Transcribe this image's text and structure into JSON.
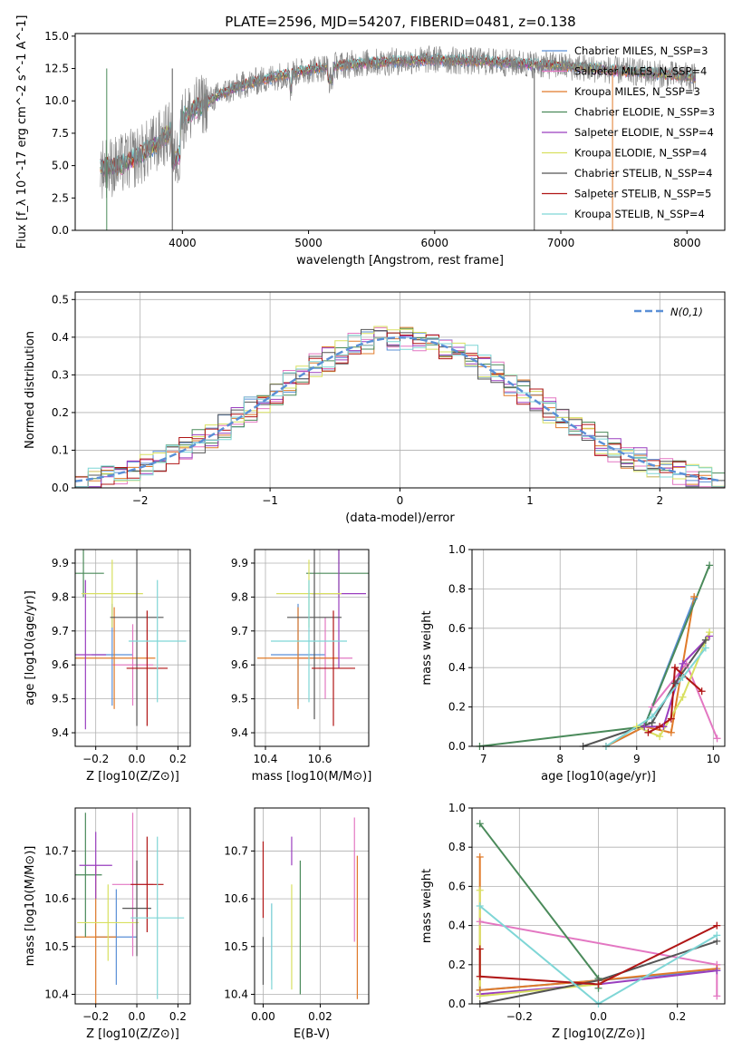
{
  "figure": {
    "title": "PLATE=2596, MJD=54207, FIBERID=0481, z=0.138"
  },
  "chart_data": [
    {
      "id": "spectrum",
      "type": "line",
      "title": "PLATE=2596, MJD=54207, FIBERID=0481, z=0.138",
      "xlabel": "wavelength [Angstrom, rest frame]",
      "ylabel": "Flux [f_λ 10^-17 erg cm^-2 s^-1 A^-1]",
      "xlim": [
        3150,
        8300
      ],
      "ylim": [
        0,
        15.2
      ],
      "xticks": [
        4000,
        5000,
        6000,
        7000,
        8000
      ],
      "yticks": [
        0.0,
        2.5,
        5.0,
        7.5,
        10.0,
        12.5,
        15.0
      ],
      "grid": false,
      "legend_position": "top-right",
      "series": [
        {
          "name": "Chabrier MILES, N_SSP=3",
          "color": "#5a8fd6"
        },
        {
          "name": "Salpeter MILES, N_SSP=4",
          "color": "#e377c2"
        },
        {
          "name": "Kroupa MILES, N_SSP=3",
          "color": "#e07b2a"
        },
        {
          "name": "Chabrier ELODIE, N_SSP=3",
          "color": "#4a8a5a"
        },
        {
          "name": "Salpeter ELODIE, N_SSP=4",
          "color": "#9a3fbf"
        },
        {
          "name": "Kroupa ELODIE, N_SSP=4",
          "color": "#d8e060"
        },
        {
          "name": "Chabrier STELIB, N_SSP=4",
          "color": "#555555"
        },
        {
          "name": "Salpeter STELIB, N_SSP=5",
          "color": "#b01515"
        },
        {
          "name": "Kroupa STELIB, N_SSP=4",
          "color": "#7fd6d6"
        }
      ],
      "data_color": "#808080",
      "continuum_x": [
        3350,
        3500,
        3700,
        3900,
        4000,
        4100,
        4300,
        4500,
        4800,
        5000,
        5200,
        5400,
        5600,
        5800,
        6000,
        6200,
        6500,
        7000,
        7500,
        8000,
        8070
      ],
      "continuum_y": [
        4.8,
        5.0,
        6.0,
        7.6,
        8.6,
        9.4,
        10.5,
        11.3,
        12.0,
        12.4,
        12.7,
        12.9,
        13.0,
        13.1,
        13.2,
        13.1,
        13.0,
        12.7,
        12.3,
        11.9,
        11.8
      ]
    },
    {
      "id": "residuals",
      "type": "bar",
      "xlabel": "(data-model)/error",
      "ylabel": "Normed distribution",
      "xlim": [
        -2.5,
        2.5
      ],
      "ylim": [
        0,
        0.52
      ],
      "xticks": [
        -2,
        -1,
        0,
        1,
        2
      ],
      "yticks": [
        0.0,
        0.1,
        0.2,
        0.3,
        0.4,
        0.5
      ],
      "grid": true,
      "legend_position": "top-right",
      "reference_curve": {
        "name": "N(0,1)",
        "mean": 0,
        "sigma": 1,
        "color": "#5a8fd6"
      }
    },
    {
      "id": "age-vs-Z",
      "type": "scatter",
      "xlabel": "Z [log10(Z/Z⊙)]",
      "ylabel": "age [log10(age/yr)]",
      "xlim": [
        -0.3,
        0.26
      ],
      "ylim": [
        9.36,
        9.94
      ],
      "xticks": [
        -0.2,
        0.0,
        0.2
      ],
      "yticks": [
        9.4,
        9.5,
        9.6,
        9.7,
        9.8,
        9.9
      ],
      "grid": true,
      "points": [
        {
          "color": "#5a8fd6",
          "x": -0.12,
          "xerr": 0.1,
          "y": 9.63,
          "yerr": 0.15
        },
        {
          "color": "#e377c2",
          "x": -0.02,
          "xerr": 0.1,
          "y": 9.6,
          "yerr": 0.12
        },
        {
          "color": "#e07b2a",
          "x": -0.11,
          "xerr": 0.2,
          "y": 9.62,
          "yerr": 0.15
        },
        {
          "color": "#4a8a5a",
          "x": -0.26,
          "xerr": 0.1,
          "y": 9.87,
          "yerr": 0.07
        },
        {
          "color": "#9a3fbf",
          "x": -0.25,
          "xerr": 0.1,
          "y": 9.63,
          "yerr": 0.22
        },
        {
          "color": "#d8e060",
          "x": -0.12,
          "xerr": 0.15,
          "y": 9.81,
          "yerr": 0.1
        },
        {
          "color": "#555555",
          "x": 0.0,
          "xerr": 0.13,
          "y": 9.74,
          "yerr": 0.32
        },
        {
          "color": "#b01515",
          "x": 0.05,
          "xerr": 0.1,
          "y": 9.59,
          "yerr": 0.17
        },
        {
          "color": "#7fd6d6",
          "x": 0.1,
          "xerr": 0.14,
          "y": 9.67,
          "yerr": 0.18
        }
      ]
    },
    {
      "id": "age-vs-mass",
      "type": "scatter",
      "xlabel": "mass [log10(M/M⊙)]",
      "ylabel": "",
      "xlim": [
        10.36,
        10.78
      ],
      "ylim": [
        9.36,
        9.94
      ],
      "xticks": [
        10.4,
        10.6
      ],
      "yticks": [
        9.4,
        9.5,
        9.6,
        9.7,
        9.8,
        9.9
      ],
      "grid": true,
      "points": [
        {
          "color": "#5a8fd6",
          "x": 10.52,
          "xerr": 0.1,
          "y": 9.63,
          "yerr": 0.15
        },
        {
          "color": "#e377c2",
          "x": 10.62,
          "xerr": 0.1,
          "y": 9.62,
          "yerr": 0.12
        },
        {
          "color": "#e07b2a",
          "x": 10.52,
          "xerr": 0.15,
          "y": 9.62,
          "yerr": 0.15
        },
        {
          "color": "#4a8a5a",
          "x": 10.67,
          "xerr": 0.12,
          "y": 9.87,
          "yerr": 0.07
        },
        {
          "color": "#9a3fbf",
          "x": 10.67,
          "xerr": 0.1,
          "y": 9.81,
          "yerr": 0.22
        },
        {
          "color": "#d8e060",
          "x": 10.56,
          "xerr": 0.12,
          "y": 9.81,
          "yerr": 0.1
        },
        {
          "color": "#555555",
          "x": 10.58,
          "xerr": 0.1,
          "y": 9.74,
          "yerr": 0.3
        },
        {
          "color": "#b01515",
          "x": 10.65,
          "xerr": 0.08,
          "y": 9.59,
          "yerr": 0.17
        },
        {
          "color": "#7fd6d6",
          "x": 10.56,
          "xerr": 0.14,
          "y": 9.67,
          "yerr": 0.18
        }
      ]
    },
    {
      "id": "weight-vs-age",
      "type": "line",
      "xlabel": "age [log10(age/yr)]",
      "ylabel": "mass weight",
      "xlim": [
        6.85,
        10.15
      ],
      "ylim": [
        0,
        1.0
      ],
      "xticks": [
        7,
        8,
        9,
        10
      ],
      "yticks": [
        0.0,
        0.2,
        0.4,
        0.6,
        0.8,
        1.0
      ],
      "grid": true,
      "series": [
        {
          "color": "#5a8fd6",
          "x": [
            8.6,
            9.1,
            9.75
          ],
          "y": [
            0.0,
            0.1,
            0.75
          ]
        },
        {
          "color": "#e377c2",
          "x": [
            9.2,
            9.65,
            10.05
          ],
          "y": [
            0.2,
            0.42,
            0.04
          ]
        },
        {
          "color": "#e07b2a",
          "x": [
            8.6,
            9.1,
            9.45,
            9.75
          ],
          "y": [
            0.0,
            0.1,
            0.07,
            0.76
          ]
        },
        {
          "color": "#4a8a5a",
          "x": [
            6.95,
            9.1,
            9.95
          ],
          "y": [
            0.0,
            0.1,
            0.92
          ]
        },
        {
          "color": "#9a3fbf",
          "x": [
            9.1,
            9.35,
            9.6,
            9.95
          ],
          "y": [
            0.1,
            0.1,
            0.42,
            0.56
          ]
        },
        {
          "color": "#d8e060",
          "x": [
            9.0,
            9.3,
            9.6,
            9.95
          ],
          "y": [
            0.1,
            0.05,
            0.25,
            0.58
          ]
        },
        {
          "color": "#555555",
          "x": [
            8.3,
            9.2,
            9.5,
            9.9
          ],
          "y": [
            0.0,
            0.12,
            0.32,
            0.54
          ]
        },
        {
          "color": "#b01515",
          "x": [
            9.15,
            9.3,
            9.45,
            9.5,
            9.85
          ],
          "y": [
            0.07,
            0.1,
            0.14,
            0.4,
            0.28
          ]
        },
        {
          "color": "#7fd6d6",
          "x": [
            8.6,
            9.2,
            9.6,
            9.9
          ],
          "y": [
            0.0,
            0.15,
            0.35,
            0.5
          ]
        }
      ]
    },
    {
      "id": "mass-vs-Z",
      "type": "scatter",
      "xlabel": "Z [log10(Z/Z⊙)]",
      "ylabel": "mass [log10(M/M⊙)]",
      "xlim": [
        -0.3,
        0.26
      ],
      "ylim": [
        10.38,
        10.79
      ],
      "xticks": [
        -0.2,
        0.0,
        0.2
      ],
      "yticks": [
        10.4,
        10.5,
        10.6,
        10.7
      ],
      "grid": true,
      "points": [
        {
          "color": "#5a8fd6",
          "x": -0.1,
          "xerr": 0.1,
          "y": 10.52,
          "yerr": 0.1
        },
        {
          "color": "#e377c2",
          "x": -0.02,
          "xerr": 0.1,
          "y": 10.63,
          "yerr": 0.15
        },
        {
          "color": "#e07b2a",
          "x": -0.2,
          "xerr": 0.1,
          "y": 10.52,
          "yerr": 0.15
        },
        {
          "color": "#4a8a5a",
          "x": -0.25,
          "xerr": 0.08,
          "y": 10.65,
          "yerr": 0.13
        },
        {
          "color": "#9a3fbf",
          "x": -0.2,
          "xerr": 0.08,
          "y": 10.67,
          "yerr": 0.07
        },
        {
          "color": "#d8e060",
          "x": -0.14,
          "xerr": 0.15,
          "y": 10.55,
          "yerr": 0.08
        },
        {
          "color": "#555555",
          "x": 0.0,
          "xerr": 0.07,
          "y": 10.58,
          "yerr": 0.1
        },
        {
          "color": "#b01515",
          "x": 0.05,
          "xerr": 0.08,
          "y": 10.63,
          "yerr": 0.1
        },
        {
          "color": "#7fd6d6",
          "x": 0.1,
          "xerr": 0.13,
          "y": 10.56,
          "yerr": 0.17
        }
      ]
    },
    {
      "id": "mass-vs-ebv",
      "type": "scatter",
      "xlabel": "E(B-V)",
      "ylabel": "",
      "xlim": [
        -0.003,
        0.037
      ],
      "ylim": [
        10.38,
        10.79
      ],
      "xticks": [
        0.0,
        0.02
      ],
      "yticks": [
        10.4,
        10.5,
        10.6,
        10.7
      ],
      "grid": true,
      "points": [
        {
          "color": "#5a8fd6",
          "x": 0.003,
          "y": 10.51,
          "yerr": 0.08
        },
        {
          "color": "#e377c2",
          "x": 0.032,
          "y": 10.64,
          "yerr": 0.13
        },
        {
          "color": "#e07b2a",
          "x": 0.033,
          "y": 10.54,
          "yerr": 0.15
        },
        {
          "color": "#4a8a5a",
          "x": 0.013,
          "y": 10.54,
          "yerr": 0.14
        },
        {
          "color": "#9a3fbf",
          "x": 0.01,
          "y": 10.7,
          "yerr": 0.03
        },
        {
          "color": "#d8e060",
          "x": 0.01,
          "y": 10.52,
          "yerr": 0.11
        },
        {
          "color": "#555555",
          "x": 0.0,
          "y": 10.47,
          "yerr": 0.05
        },
        {
          "color": "#b01515",
          "x": 0.0,
          "y": 10.64,
          "yerr": 0.08
        },
        {
          "color": "#7fd6d6",
          "x": 0.003,
          "y": 10.5,
          "yerr": 0.09
        }
      ]
    },
    {
      "id": "weight-vs-Z",
      "type": "line",
      "xlabel": "Z [log10(Z/Z⊙)]",
      "ylabel": "mass weight",
      "xlim": [
        -0.32,
        0.32
      ],
      "ylim": [
        0,
        1.0
      ],
      "xticks": [
        -0.2,
        0.0,
        0.2
      ],
      "yticks": [
        0.0,
        0.2,
        0.4,
        0.6,
        0.8,
        1.0
      ],
      "grid": true,
      "series": [
        {
          "color": "#5a8fd6",
          "x": [
            -0.3,
            0.0,
            0.3
          ],
          "y": [
            0.07,
            0.12,
            0.17
          ]
        },
        {
          "color": "#e377c2",
          "x": [
            -0.3,
            0.3,
            0.3
          ],
          "y": [
            0.42,
            0.2,
            0.04
          ]
        },
        {
          "color": "#e07b2a",
          "x": [
            -0.3,
            -0.3,
            0.0,
            0.3
          ],
          "y": [
            0.75,
            0.07,
            0.12,
            0.18
          ]
        },
        {
          "color": "#4a8a5a",
          "x": [
            -0.3,
            0.0,
            0.0
          ],
          "y": [
            0.92,
            0.13,
            0.08
          ]
        },
        {
          "color": "#9a3fbf",
          "x": [
            -0.3,
            0.0,
            0.3
          ],
          "y": [
            0.05,
            0.1,
            0.17
          ]
        },
        {
          "color": "#d8e060",
          "x": [
            -0.3,
            -0.3,
            0.0
          ],
          "y": [
            0.58,
            0.04,
            0.1
          ]
        },
        {
          "color": "#555555",
          "x": [
            -0.3,
            0.0,
            0.3
          ],
          "y": [
            0.0,
            0.12,
            0.32
          ]
        },
        {
          "color": "#b01515",
          "x": [
            -0.3,
            -0.3,
            0.0,
            0.3
          ],
          "y": [
            0.28,
            0.14,
            0.1,
            0.4
          ]
        },
        {
          "color": "#7fd6d6",
          "x": [
            -0.3,
            0.0,
            0.3
          ],
          "y": [
            0.5,
            0.0,
            0.35
          ]
        }
      ]
    }
  ]
}
